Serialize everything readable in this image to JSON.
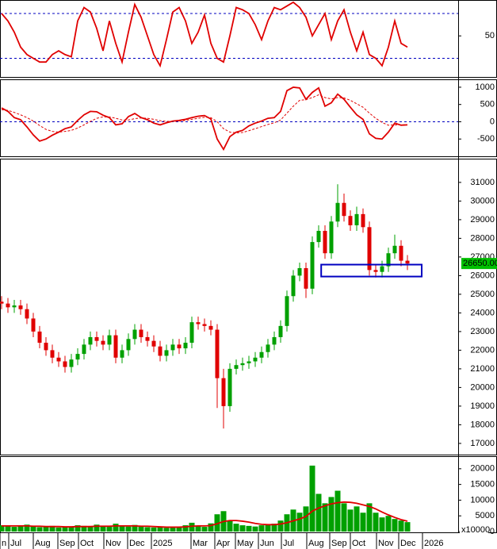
{
  "chart_data": [
    {
      "type": "line",
      "xlim": [
        -0.25,
        72
      ],
      "ylim": [
        -5,
        97
      ],
      "yticks": [
        50
      ],
      "levels": [
        20,
        80
      ],
      "level_color": "#0000c0",
      "series": [
        {
          "color": "#e00000",
          "values": [
            80,
            70,
            55,
            35,
            25,
            20,
            15,
            15,
            25,
            30,
            25,
            22,
            70,
            88,
            82,
            60,
            30,
            70,
            40,
            15,
            55,
            92,
            75,
            50,
            25,
            10,
            45,
            82,
            88,
            70,
            40,
            55,
            78,
            40,
            20,
            15,
            50,
            88,
            85,
            80,
            65,
            45,
            70,
            88,
            85,
            90,
            95,
            88,
            75,
            50,
            65,
            80,
            45,
            70,
            85,
            55,
            30,
            55,
            25,
            20,
            10,
            35,
            70,
            40,
            35
          ]
        }
      ]
    },
    {
      "type": "line",
      "xlim": [
        -0.25,
        72
      ],
      "ylim": [
        -1000,
        1205
      ],
      "yticks": [
        -500,
        0,
        500,
        1000
      ],
      "levels": [
        0
      ],
      "level_color": "#0000c0",
      "series": [
        {
          "color": "#e00000",
          "values": [
            400,
            300,
            120,
            60,
            -150,
            -380,
            -560,
            -500,
            -390,
            -300,
            -200,
            -150,
            40,
            200,
            300,
            290,
            190,
            120,
            -90,
            -60,
            150,
            240,
            120,
            60,
            -40,
            -90,
            -30,
            20,
            40,
            70,
            120,
            160,
            180,
            80,
            -500,
            -800,
            -430,
            -300,
            -250,
            -120,
            -40,
            20,
            100,
            120,
            300,
            900,
            1000,
            980,
            650,
            850,
            980,
            450,
            550,
            800,
            650,
            420,
            200,
            70,
            -350,
            -480,
            -500,
            -300,
            -40,
            -100,
            -90
          ]
        },
        {
          "color": "#e00000",
          "dashed": true,
          "values": [
            350,
            330,
            270,
            200,
            120,
            20,
            -110,
            -220,
            -280,
            -300,
            -280,
            -250,
            -180,
            -90,
            10,
            100,
            140,
            140,
            100,
            50,
            50,
            90,
            110,
            100,
            70,
            30,
            10,
            10,
            20,
            40,
            70,
            100,
            130,
            120,
            0,
            -200,
            -300,
            -320,
            -310,
            -260,
            -200,
            -140,
            -80,
            -30,
            50,
            250,
            450,
            620,
            640,
            700,
            780,
            700,
            660,
            700,
            690,
            620,
            520,
            420,
            250,
            100,
            -20,
            -100,
            -90,
            -90,
            -90
          ]
        }
      ]
    },
    {
      "type": "candlestick",
      "xlim": [
        -0.25,
        72
      ],
      "ylim": [
        16400,
        32230
      ],
      "yticks": [
        17000,
        18000,
        19000,
        20000,
        21000,
        22000,
        23000,
        24000,
        25000,
        26000,
        27000,
        28000,
        29000,
        30000,
        31000
      ],
      "up_color": "#00a000",
      "down_color": "#e00000",
      "open": [
        24600,
        24500,
        24300,
        24400,
        24200,
        23700,
        23000,
        22400,
        22000,
        21600,
        21400,
        21100,
        21500,
        21800,
        22300,
        22700,
        22500,
        22300,
        22800,
        21600,
        22000,
        22600,
        23100,
        22700,
        22500,
        22200,
        21700,
        22000,
        22300,
        22100,
        22400,
        23500,
        23400,
        23300,
        23100,
        20500,
        19000,
        21000,
        21200,
        21300,
        21400,
        21600,
        21900,
        22300,
        22700,
        23300,
        24900,
        26000,
        26400,
        25300,
        27800,
        28400,
        27200,
        28900,
        29900,
        29200,
        28700,
        29300,
        28600,
        26300,
        26200,
        26500,
        27200,
        27600,
        26800
      ],
      "high": [
        24900,
        24800,
        24700,
        24700,
        24500,
        24000,
        23300,
        22700,
        22300,
        21900,
        21700,
        21800,
        22100,
        22600,
        23000,
        23000,
        22800,
        23100,
        23100,
        22300,
        22900,
        23400,
        23400,
        23000,
        22800,
        22500,
        22300,
        22600,
        22600,
        22700,
        23800,
        23800,
        23700,
        23600,
        23400,
        21000,
        21300,
        21500,
        21600,
        21700,
        21900,
        22200,
        22600,
        23000,
        23600,
        25200,
        26300,
        26700,
        26700,
        28100,
        28700,
        28700,
        29200,
        30900,
        30400,
        29500,
        29700,
        29600,
        28900,
        26600,
        26800,
        27500,
        28200,
        27900,
        27100
      ],
      "low": [
        24200,
        24000,
        24000,
        23900,
        23400,
        22700,
        22100,
        21700,
        21300,
        21100,
        20800,
        20800,
        21200,
        21500,
        22000,
        22200,
        22000,
        22000,
        21300,
        21300,
        21700,
        22300,
        22400,
        22200,
        21900,
        21400,
        21400,
        21700,
        21800,
        21800,
        22100,
        23100,
        23000,
        22800,
        18900,
        17800,
        18700,
        20700,
        20900,
        21000,
        21100,
        21300,
        21600,
        22000,
        22400,
        23000,
        24600,
        25700,
        24800,
        25000,
        27500,
        26900,
        26900,
        28600,
        28900,
        28400,
        28400,
        28300,
        26000,
        25900,
        25900,
        26200,
        26900,
        26500,
        26300
      ],
      "close": [
        24500,
        24300,
        24400,
        24200,
        23700,
        23000,
        22400,
        22000,
        21600,
        21400,
        21100,
        21500,
        21800,
        22300,
        22700,
        22500,
        22300,
        22800,
        21600,
        22000,
        22600,
        23100,
        22700,
        22500,
        22200,
        21700,
        22000,
        22300,
        22100,
        22400,
        23500,
        23400,
        23300,
        23100,
        20500,
        19000,
        21000,
        21200,
        21300,
        21400,
        21600,
        21900,
        22300,
        22700,
        23300,
        24900,
        26000,
        26400,
        25300,
        27800,
        28400,
        27200,
        28900,
        29900,
        29200,
        28700,
        29300,
        28600,
        26300,
        26200,
        26500,
        27200,
        27600,
        26800,
        26650
      ],
      "last_label": "26650.00",
      "last_label_color": "#00c000",
      "box": {
        "x": [
          50.4,
          66.25
        ],
        "y": [
          25950,
          26590
        ],
        "color": "#0000c0"
      }
    },
    {
      "type": "bar",
      "xlim": [
        -0.25,
        72
      ],
      "ylim": [
        0,
        23750
      ],
      "yticks": [
        0,
        5000,
        10000,
        15000,
        20000
      ],
      "unit_label": "x10000",
      "series": [
        {
          "color": "#00a000",
          "values": [
            2000,
            1800,
            1500,
            1700,
            2200,
            1600,
            1400,
            1500,
            1800,
            1300,
            1500,
            1600,
            2000,
            1800,
            1500,
            2200,
            1700,
            1500,
            2500,
            1800,
            1600,
            2100,
            1500,
            1400,
            1300,
            1500,
            1200,
            1300,
            1600,
            2000,
            2800,
            1800,
            1500,
            2600,
            5500,
            6500,
            3500,
            2500,
            2000,
            1800,
            1600,
            2000,
            2200,
            2500,
            3500,
            5500,
            7000,
            6000,
            8000,
            21000,
            12000,
            9000,
            11000,
            13000,
            9000,
            7000,
            8000,
            6000,
            9000,
            6000,
            4500,
            5000,
            4000,
            3500,
            3000
          ]
        },
        {
          "color": "#e00000",
          "line": true,
          "values": [
            1800,
            1800,
            1800,
            1800,
            1800,
            1700,
            1700,
            1600,
            1600,
            1600,
            1500,
            1500,
            1600,
            1600,
            1600,
            1700,
            1700,
            1700,
            1800,
            1800,
            1800,
            1800,
            1700,
            1700,
            1600,
            1500,
            1400,
            1400,
            1400,
            1500,
            1700,
            1800,
            1800,
            1900,
            2500,
            3200,
            3500,
            3500,
            3300,
            3000,
            2600,
            2300,
            2200,
            2200,
            2400,
            2800,
            3400,
            4000,
            4800,
            6500,
            7500,
            8200,
            8800,
            9200,
            9400,
            9300,
            9000,
            8500,
            8000,
            7200,
            6200,
            5300,
            4500,
            3800,
            3300
          ]
        }
      ],
      "xticks": [
        {
          "value": -0.25,
          "label": "n"
        },
        {
          "value": 1.125,
          "label": "Jul"
        },
        {
          "value": 5,
          "label": "Aug"
        },
        {
          "value": 8.875,
          "label": "Sep"
        },
        {
          "value": 12.125,
          "label": "Oct"
        },
        {
          "value": 16.125,
          "label": "Nov"
        },
        {
          "value": 19.875,
          "label": "Dec"
        },
        {
          "value": 23.625,
          "label": "2025"
        },
        {
          "value": 29.875,
          "label": "Mar"
        },
        {
          "value": 33.625,
          "label": "Apr"
        },
        {
          "value": 36.875,
          "label": "May"
        },
        {
          "value": 40.5,
          "label": "Jun"
        },
        {
          "value": 44.125,
          "label": "Jul"
        },
        {
          "value": 48.125,
          "label": "Aug"
        },
        {
          "value": 51.75,
          "label": "Sep"
        },
        {
          "value": 55,
          "label": "Oct"
        },
        {
          "value": 59.125,
          "label": "Nov"
        },
        {
          "value": 62.625,
          "label": "Dec"
        },
        {
          "value": 66.375,
          "label": "2026"
        }
      ]
    }
  ]
}
